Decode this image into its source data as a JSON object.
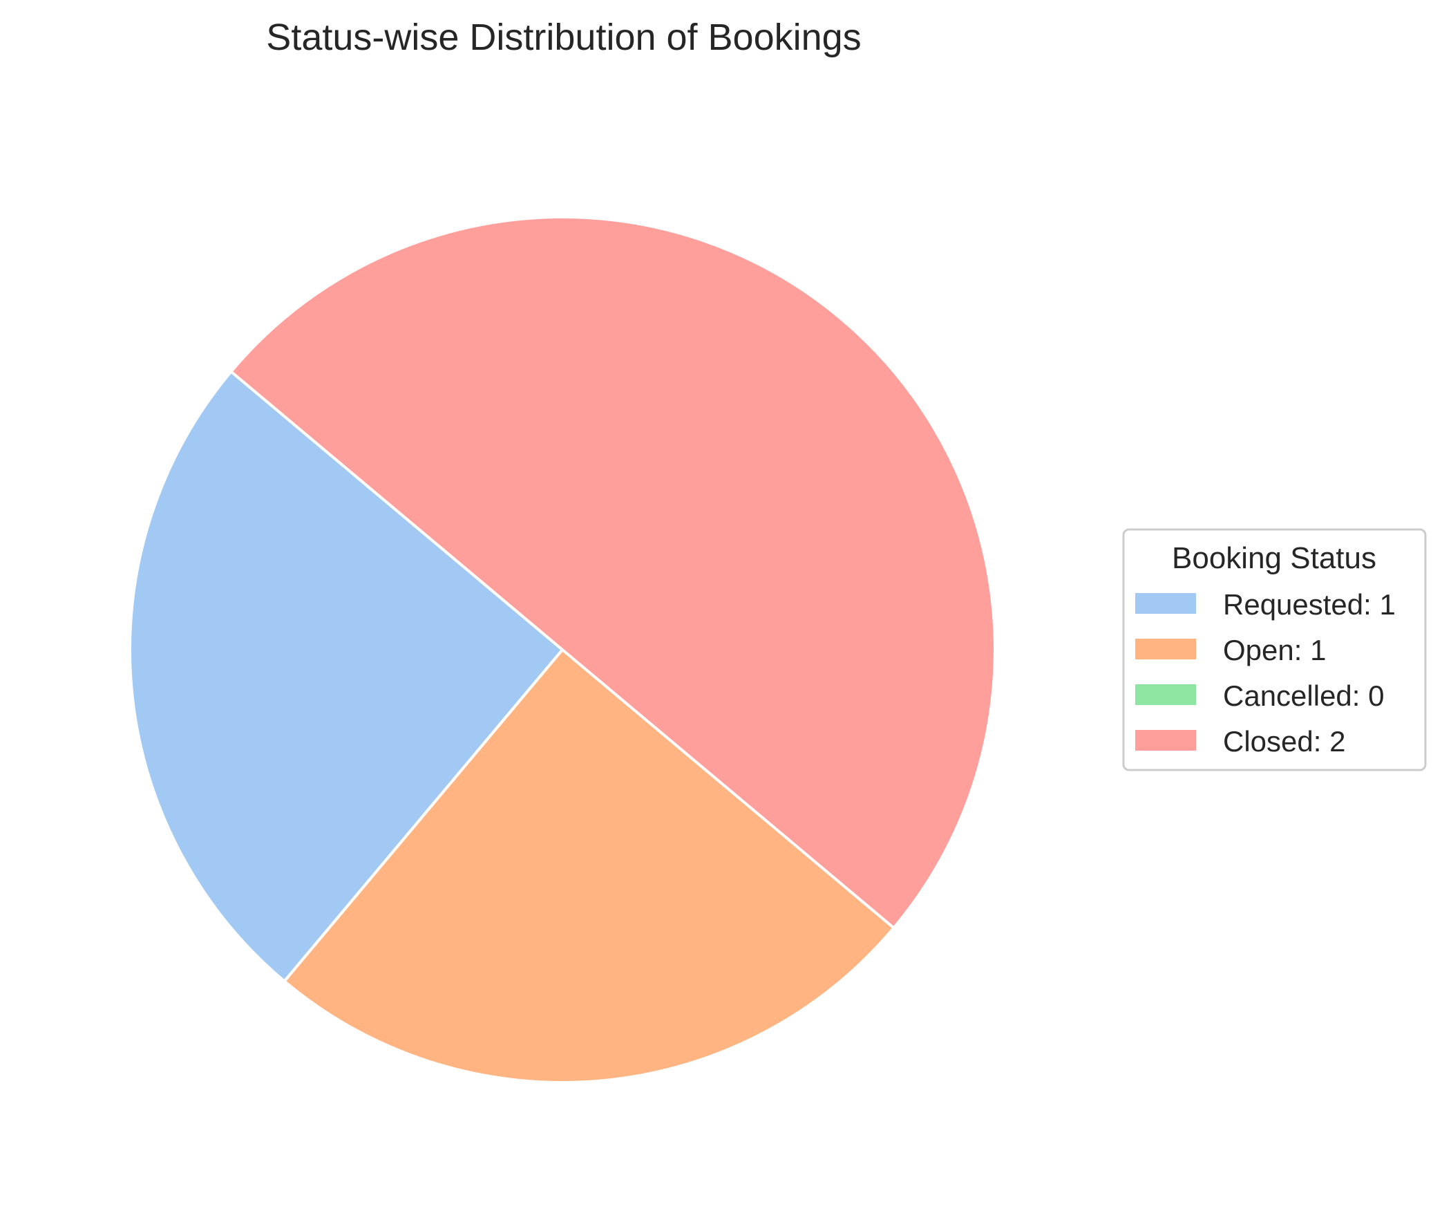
{
  "chart_data": {
    "type": "pie",
    "title": "Status-wise Distribution of Bookings",
    "categories": [
      "Requested",
      "Open",
      "Cancelled",
      "Closed"
    ],
    "values": [
      1,
      1,
      0,
      2
    ],
    "colors": [
      "#a1c9f4",
      "#ffb482",
      "#8de5a1",
      "#ff9f9b"
    ],
    "start_angle_deg": 140,
    "direction": "counterclockwise",
    "wedge_edge_color": "#ffffff",
    "legend": {
      "title": "Booking Status",
      "placement": "center-right",
      "entries": [
        "Requested: 1",
        "Open: 1",
        "Cancelled: 0",
        "Closed: 2"
      ]
    }
  }
}
